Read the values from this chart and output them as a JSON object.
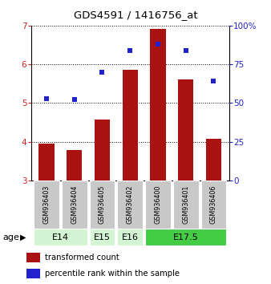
{
  "title": "GDS4591 / 1416756_at",
  "samples": [
    "GSM936403",
    "GSM936404",
    "GSM936405",
    "GSM936402",
    "GSM936400",
    "GSM936401",
    "GSM936406"
  ],
  "transformed_count": [
    3.95,
    3.78,
    4.57,
    5.85,
    6.92,
    5.6,
    4.07
  ],
  "percentile_rank": [
    53,
    52,
    70,
    84,
    88,
    84,
    64
  ],
  "bar_color": "#aa1111",
  "dot_color": "#2222cc",
  "ylim_left": [
    3,
    7
  ],
  "ylim_right": [
    0,
    100
  ],
  "yticks_left": [
    3,
    4,
    5,
    6,
    7
  ],
  "yticks_right": [
    0,
    25,
    50,
    75,
    100
  ],
  "ytick_labels_right": [
    "0",
    "25",
    "50",
    "75",
    "100%"
  ],
  "groups": [
    {
      "label": "E14",
      "indices": [
        0,
        1
      ],
      "color": "#d4f5d4"
    },
    {
      "label": "E15",
      "indices": [
        2
      ],
      "color": "#d4f5d4"
    },
    {
      "label": "E16",
      "indices": [
        3
      ],
      "color": "#d4f5d4"
    },
    {
      "label": "E17.5",
      "indices": [
        4,
        5,
        6
      ],
      "color": "#44cc44"
    }
  ],
  "bar_bottom": 3,
  "age_label": "age",
  "sample_box_color": "#c8c8c8",
  "legend_items": [
    {
      "color": "#aa1111",
      "label": "transformed count"
    },
    {
      "color": "#2222cc",
      "label": "percentile rank within the sample"
    }
  ]
}
